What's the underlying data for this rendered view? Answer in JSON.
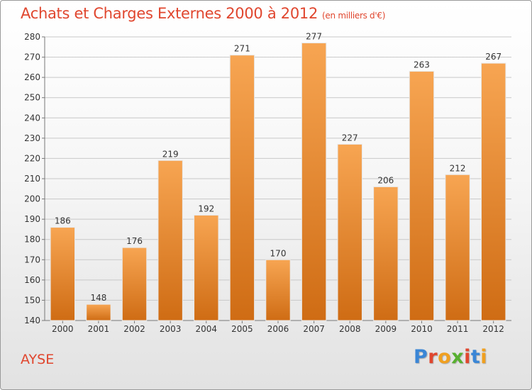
{
  "title": "Achats et Charges Externes 2000 à 2012",
  "subtitle": "(en milliers d'€)",
  "commune": "AYSE",
  "logo": {
    "text": "Proxiti",
    "letter_colors": [
      "#3a86d6",
      "#e0462e",
      "#f0a020",
      "#58b030",
      "#e0462e",
      "#3a86d6",
      "#f0a020"
    ]
  },
  "colors": {
    "bar_top": "#f7a552",
    "bar_bottom": "#cf6c14",
    "text_accent": "#e0462e"
  },
  "chart_data": {
    "type": "bar",
    "title": "Achats et Charges Externes 2000 à 2012",
    "subtitle": "(en milliers d'€)",
    "xlabel": "",
    "ylabel": "",
    "categories": [
      "2000",
      "2001",
      "2002",
      "2003",
      "2004",
      "2005",
      "2006",
      "2007",
      "2008",
      "2009",
      "2010",
      "2011",
      "2012"
    ],
    "values": [
      186,
      148,
      176,
      219,
      192,
      271,
      170,
      277,
      227,
      206,
      263,
      212,
      267
    ],
    "ylim": [
      140,
      280
    ],
    "yticks": [
      140,
      150,
      160,
      170,
      180,
      190,
      200,
      210,
      220,
      230,
      240,
      250,
      260,
      270,
      280
    ],
    "grid": true,
    "legend": "none"
  }
}
